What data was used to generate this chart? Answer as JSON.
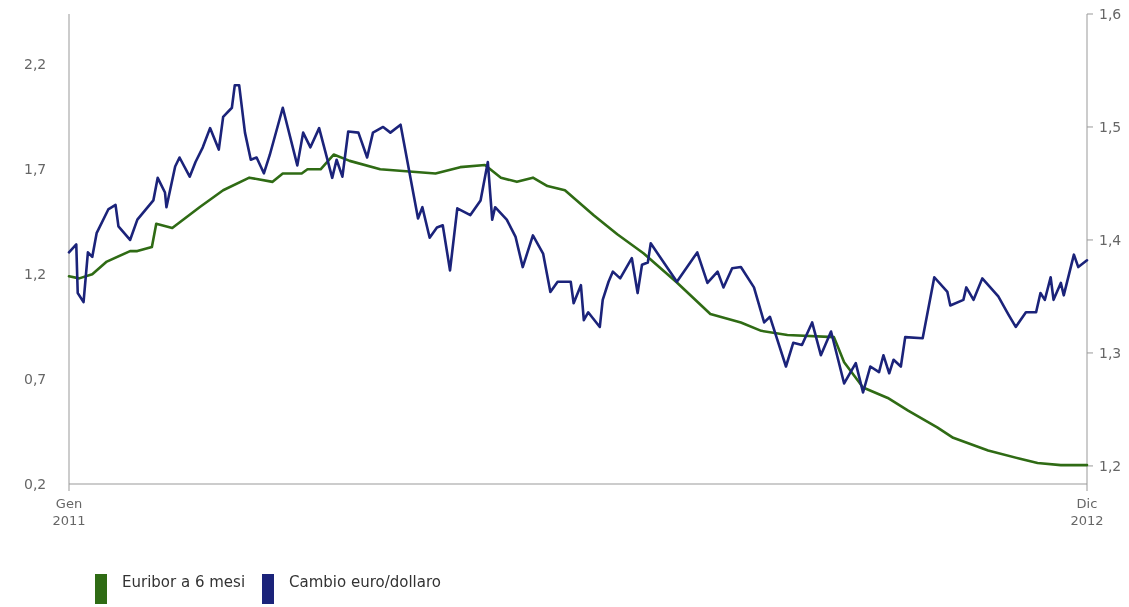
{
  "chart_data": {
    "type": "line",
    "legend": "bottom left",
    "grid": false,
    "marker": "none",
    "line_style": "solid",
    "xlim": [
      "2011-01-01",
      "2012-12-01"
    ],
    "xticks": [
      {
        "value": "2011-01-01",
        "label": "Gen\n2011"
      },
      {
        "value": "2012-12-01",
        "label": "Dic\n2012"
      }
    ],
    "ylim": [
      0.2,
      2.44
    ],
    "yticks": [
      {
        "value": 0.2,
        "label": "0,2"
      },
      {
        "value": 0.7,
        "label": "0,7"
      },
      {
        "value": 1.2,
        "label": "1,2"
      },
      {
        "value": 1.7,
        "label": "1,7"
      },
      {
        "value": 2.2,
        "label": "2,2"
      }
    ],
    "y2lim": [
      1.184,
      1.6
    ],
    "y2ticks": [
      {
        "value": 1.2,
        "label": "1,2"
      },
      {
        "value": 1.3,
        "label": "1,3"
      },
      {
        "value": 1.4,
        "label": "1,4"
      },
      {
        "value": 1.5,
        "label": "1,5"
      },
      {
        "value": 1.6,
        "label": "1,6"
      }
    ],
    "series": [
      {
        "name": "Euribor a 6 mesi",
        "color": "#2f6b14",
        "x": [
          "2011-01-01",
          "2011-01-08",
          "2011-01-17",
          "2011-01-27",
          "2011-02-12",
          "2011-02-17",
          "2011-02-27",
          "2011-03-02",
          "2011-03-13",
          "2011-04-01",
          "2011-04-17",
          "2011-05-05",
          "2011-05-21",
          "2011-05-28",
          "2011-06-10",
          "2011-06-14",
          "2011-06-23",
          "2011-07-02",
          "2011-07-13",
          "2011-08-03",
          "2011-09-10",
          "2011-09-27",
          "2011-10-14",
          "2011-10-25",
          "2011-11-05",
          "2011-11-16",
          "2011-11-26",
          "2011-12-08",
          "2011-12-28",
          "2012-01-13",
          "2012-01-31",
          "2012-02-23",
          "2012-03-17",
          "2012-04-07",
          "2012-04-21",
          "2012-05-09",
          "2012-06-10",
          "2012-06-17",
          "2012-06-30",
          "2012-07-17",
          "2012-07-31",
          "2012-08-20",
          "2012-08-31",
          "2012-09-24",
          "2012-10-16",
          "2012-10-28",
          "2012-11-13",
          "2012-12-01"
        ],
        "values": [
          1.19,
          1.18,
          1.2,
          1.26,
          1.31,
          1.31,
          1.33,
          1.44,
          1.42,
          1.52,
          1.6,
          1.66,
          1.64,
          1.68,
          1.68,
          1.7,
          1.7,
          1.77,
          1.74,
          1.7,
          1.68,
          1.71,
          1.72,
          1.66,
          1.64,
          1.66,
          1.62,
          1.6,
          1.48,
          1.39,
          1.3,
          1.16,
          1.01,
          0.97,
          0.93,
          0.91,
          0.9,
          0.78,
          0.66,
          0.61,
          0.55,
          0.47,
          0.42,
          0.36,
          0.32,
          0.3,
          0.29,
          0.29
        ]
      },
      {
        "name": "Cambio euro/dollaro",
        "color": "#1b237a",
        "axis": "y2",
        "x": [
          "2011-01-01",
          "2011-01-06",
          "2011-01-07",
          "2011-01-11",
          "2011-01-14",
          "2011-01-17",
          "2011-01-20",
          "2011-01-28",
          "2011-02-02",
          "2011-02-04",
          "2011-02-12",
          "2011-02-17",
          "2011-02-28",
          "2011-03-03",
          "2011-03-08",
          "2011-03-09",
          "2011-03-15",
          "2011-03-18",
          "2011-03-25",
          "2011-03-29",
          "2011-04-03",
          "2011-04-08",
          "2011-04-14",
          "2011-04-17",
          "2011-04-23",
          "2011-04-25",
          "2011-04-28",
          "2011-05-02",
          "2011-05-06",
          "2011-05-10",
          "2011-05-15",
          "2011-05-19",
          "2011-05-28",
          "2011-06-07",
          "2011-06-11",
          "2011-06-16",
          "2011-06-22",
          "2011-07-01",
          "2011-07-04",
          "2011-07-08",
          "2011-07-12",
          "2011-07-19",
          "2011-07-25",
          "2011-07-29",
          "2011-08-05",
          "2011-08-10",
          "2011-08-17",
          "2011-08-29",
          "2011-09-01",
          "2011-09-06",
          "2011-09-11",
          "2011-09-15",
          "2011-09-20",
          "2011-09-25",
          "2011-10-04",
          "2011-10-11",
          "2011-10-16",
          "2011-10-19",
          "2011-10-21",
          "2011-10-29",
          "2011-11-04",
          "2011-11-09",
          "2011-11-16",
          "2011-11-23",
          "2011-11-28",
          "2011-12-03",
          "2011-12-12",
          "2011-12-14",
          "2011-12-19",
          "2011-12-21",
          "2011-12-24",
          "2012-01-01",
          "2012-01-03",
          "2012-01-07",
          "2012-01-10",
          "2012-01-15",
          "2012-01-23",
          "2012-01-27",
          "2012-01-30",
          "2012-02-03",
          "2012-02-05",
          "2012-02-23",
          "2012-03-08",
          "2012-03-15",
          "2012-03-22",
          "2012-03-26",
          "2012-04-01",
          "2012-04-07",
          "2012-04-16",
          "2012-04-23",
          "2012-04-27",
          "2012-05-08",
          "2012-05-13",
          "2012-05-19",
          "2012-05-26",
          "2012-06-01",
          "2012-06-08",
          "2012-06-17",
          "2012-06-25",
          "2012-06-30",
          "2012-07-05",
          "2012-07-11",
          "2012-07-14",
          "2012-07-18",
          "2012-07-21",
          "2012-07-26",
          "2012-07-29",
          "2012-08-10",
          "2012-08-18",
          "2012-08-27",
          "2012-08-29",
          "2012-09-07",
          "2012-09-09",
          "2012-09-14",
          "2012-09-20",
          "2012-10-01",
          "2012-10-08",
          "2012-10-13",
          "2012-10-20",
          "2012-10-27",
          "2012-10-30",
          "2012-11-02",
          "2012-11-06",
          "2012-11-08",
          "2012-11-13",
          "2012-11-15",
          "2012-11-22",
          "2012-11-25",
          "2012-12-01"
        ],
        "values": [
          1.389,
          1.396,
          1.353,
          1.345,
          1.389,
          1.385,
          1.406,
          1.427,
          1.431,
          1.412,
          1.4,
          1.418,
          1.435,
          1.455,
          1.442,
          1.429,
          1.465,
          1.473,
          1.456,
          1.469,
          1.482,
          1.499,
          1.48,
          1.509,
          1.517,
          1.537,
          1.537,
          1.495,
          1.471,
          1.473,
          1.459,
          1.475,
          1.517,
          1.466,
          1.495,
          1.482,
          1.499,
          1.455,
          1.471,
          1.456,
          1.496,
          1.495,
          1.473,
          1.495,
          1.5,
          1.495,
          1.502,
          1.419,
          1.429,
          1.402,
          1.411,
          1.413,
          1.373,
          1.428,
          1.422,
          1.435,
          1.469,
          1.418,
          1.429,
          1.418,
          1.403,
          1.376,
          1.404,
          1.388,
          1.354,
          1.363,
          1.363,
          1.344,
          1.36,
          1.329,
          1.336,
          1.323,
          1.347,
          1.363,
          1.372,
          1.366,
          1.384,
          1.353,
          1.378,
          1.38,
          1.397,
          1.363,
          1.389,
          1.362,
          1.372,
          1.358,
          1.375,
          1.376,
          1.358,
          1.327,
          1.332,
          1.288,
          1.309,
          1.307,
          1.327,
          1.298,
          1.319,
          1.273,
          1.291,
          1.265,
          1.288,
          1.283,
          1.298,
          1.282,
          1.294,
          1.288,
          1.314,
          1.313,
          1.367,
          1.354,
          1.342,
          1.347,
          1.358,
          1.347,
          1.366,
          1.35,
          1.334,
          1.323,
          1.336,
          1.336,
          1.353,
          1.347,
          1.367,
          1.347,
          1.362,
          1.351,
          1.387,
          1.376,
          1.382
        ]
      }
    ]
  }
}
